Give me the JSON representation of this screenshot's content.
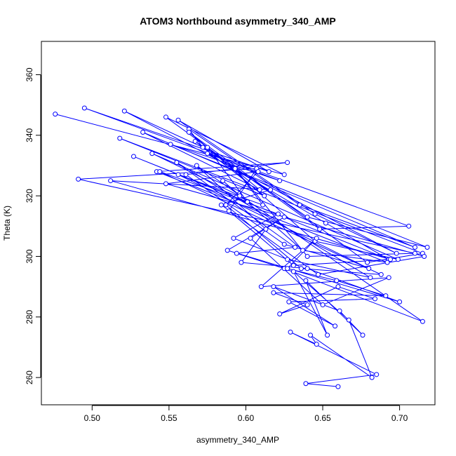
{
  "chart_data": {
    "type": "line",
    "title": "ATOM3 Northbound asymmetry_340_AMP",
    "xlabel": "asymmetry_340_AMP",
    "ylabel": "Theta (K)",
    "xlim": [
      0.467,
      0.723
    ],
    "ylim": [
      251,
      371
    ],
    "xticks": [
      0.5,
      0.55,
      0.6,
      0.65,
      0.7
    ],
    "xtick_labels": [
      "0.50",
      "0.55",
      "0.60",
      "0.65",
      "0.70"
    ],
    "yticks": [
      260,
      280,
      300,
      320,
      340,
      360
    ],
    "ytick_labels": [
      "260",
      "280",
      "300",
      "320",
      "340",
      "360"
    ],
    "grid": false,
    "legend": "none",
    "series": [
      {
        "color": "#0000ff",
        "marker": "open-circle",
        "x": [
          0.476,
          0.625,
          0.548,
          0.648,
          0.706,
          0.495,
          0.615,
          0.556,
          0.645,
          0.698,
          0.521,
          0.572,
          0.563,
          0.635,
          0.71,
          0.533,
          0.609,
          0.563,
          0.679,
          0.715,
          0.518,
          0.612,
          0.567,
          0.64,
          0.718,
          0.551,
          0.622,
          0.575,
          0.652,
          0.693,
          0.527,
          0.601,
          0.575,
          0.645,
          0.699,
          0.539,
          0.596,
          0.585,
          0.637,
          0.692,
          0.542,
          0.627,
          0.561,
          0.625,
          0.68,
          0.556,
          0.611,
          0.593,
          0.64,
          0.71,
          0.491,
          0.607,
          0.589,
          0.631,
          0.694,
          0.512,
          0.616,
          0.584,
          0.647,
          0.716,
          0.548,
          0.608,
          0.587,
          0.636,
          0.688,
          0.544,
          0.621,
          0.592,
          0.627,
          0.681,
          0.555,
          0.632,
          0.594,
          0.625,
          0.715,
          0.568,
          0.613,
          0.597,
          0.64,
          0.7,
          0.588,
          0.625,
          0.603,
          0.65,
          0.693,
          0.61,
          0.646,
          0.627,
          0.659,
          0.691,
          0.618,
          0.64,
          0.622,
          0.66,
          0.684,
          0.628,
          0.658,
          0.618,
          0.661,
          0.676,
          0.639,
          0.653,
          0.631,
          0.667,
          0.682,
          0.642,
          0.646,
          0.629,
          0.685,
          0.639,
          0.66
        ],
        "y": [
          347,
          327,
          346,
          309,
          310,
          349,
          328,
          345,
          314,
          301,
          348,
          336,
          342,
          317,
          303,
          341,
          322,
          341,
          298,
          301,
          339,
          320,
          338,
          313,
          303,
          337,
          325,
          334,
          311,
          299,
          333,
          318,
          336,
          305,
          299,
          334,
          320,
          325,
          302,
          298,
          328,
          331,
          327,
          304,
          296,
          327,
          317,
          329,
          300,
          301,
          325.5,
          329,
          315,
          297,
          299,
          325,
          322,
          317,
          294,
          300,
          324,
          328,
          317,
          296,
          294,
          328,
          314,
          306,
          299,
          293,
          331,
          303,
          301,
          296,
          278.5,
          330,
          309,
          298,
          296,
          285,
          302,
          313,
          306,
          284,
          293,
          290,
          306,
          296,
          292,
          287,
          288,
          284,
          281,
          290,
          286,
          285,
          277,
          290,
          282,
          274,
          292,
          274,
          295,
          279,
          260,
          274,
          271,
          275,
          261,
          258,
          257
        ]
      }
    ]
  }
}
